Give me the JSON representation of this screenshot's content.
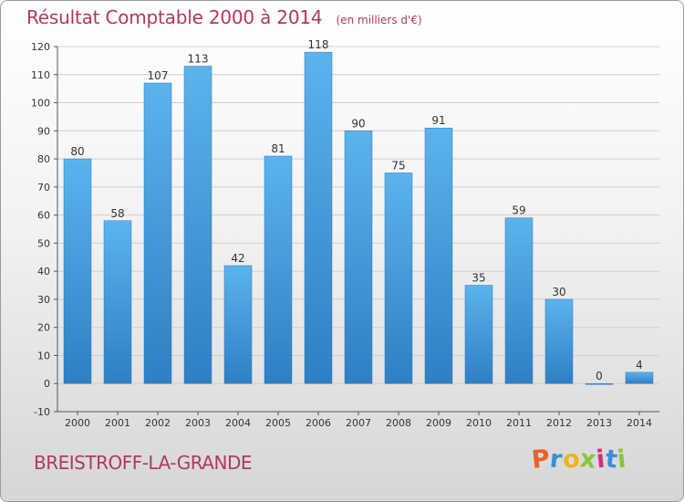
{
  "chart_data": {
    "type": "bar",
    "title": "Résultat Comptable 2000 à 2014",
    "subtitle": "(en milliers d'€)",
    "categories": [
      "2000",
      "2001",
      "2002",
      "2003",
      "2004",
      "2005",
      "2006",
      "2007",
      "2008",
      "2009",
      "2010",
      "2011",
      "2012",
      "2013",
      "2014"
    ],
    "values": [
      80,
      58,
      107,
      113,
      42,
      81,
      118,
      90,
      75,
      91,
      35,
      59,
      30,
      0,
      4
    ],
    "ylim": [
      -10,
      120
    ],
    "yticks": [
      -10,
      0,
      10,
      20,
      30,
      40,
      50,
      60,
      70,
      80,
      90,
      100,
      110,
      120
    ],
    "xlabel": "",
    "ylabel": "",
    "grid": true,
    "bar_color": "#3a8fd4"
  },
  "footer": {
    "town": "BREISTROFF-LA-GRANDE",
    "logo_letters": [
      "P",
      "r",
      "o",
      "x",
      "i",
      "t",
      "i"
    ],
    "logo_colors": [
      "#e8632b",
      "#3a8fd4",
      "#f0b41a",
      "#8cc43c",
      "#d62e7d",
      "#3a8fd4",
      "#8cc43c"
    ]
  }
}
